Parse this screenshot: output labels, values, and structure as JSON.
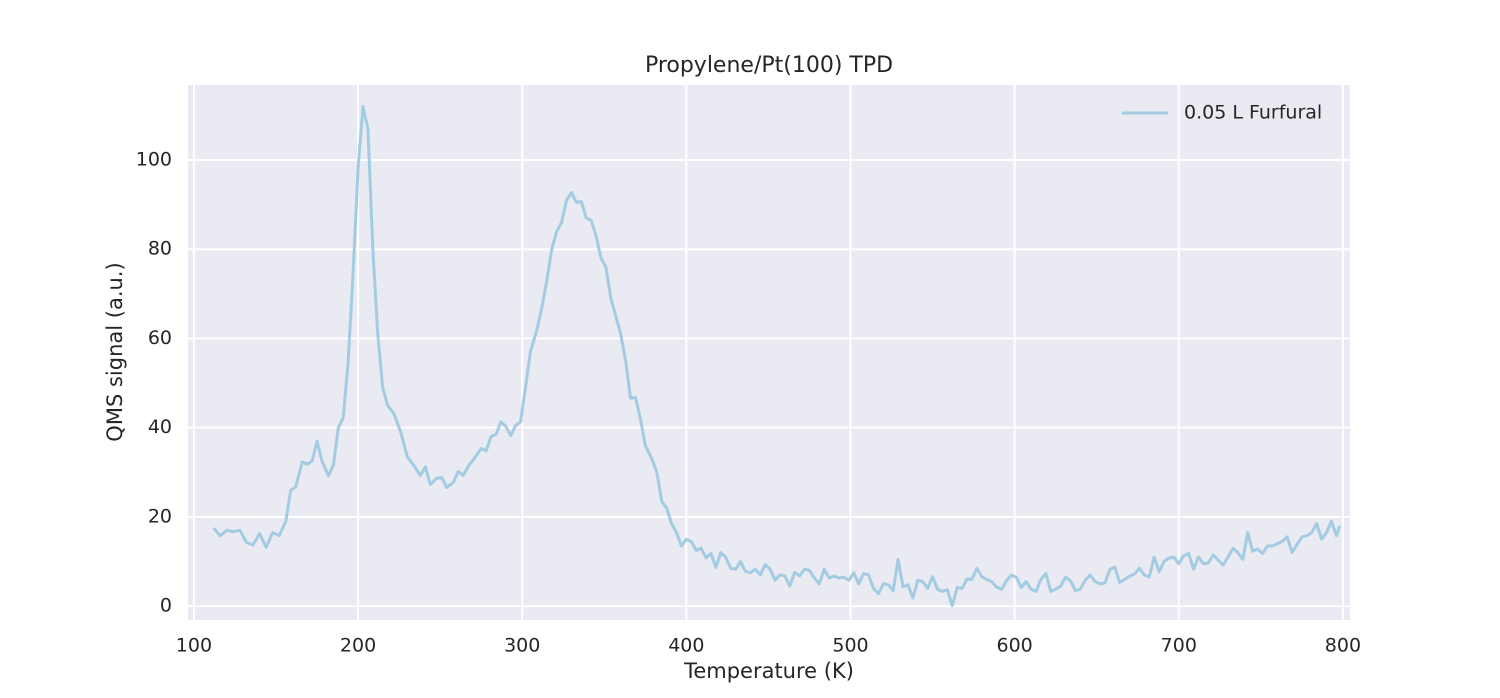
{
  "chart_data": {
    "type": "line",
    "title": "Propylene/Pt(100) TPD",
    "x_label": "Temperature (K)",
    "y_label": "QMS signal (a.u.)",
    "xlim": [
      96.4,
      804.3
    ],
    "ylim": [
      -3.1,
      116.8
    ],
    "xticks": [
      100,
      200,
      300,
      400,
      500,
      600,
      700,
      800
    ],
    "yticks": [
      0,
      20,
      40,
      60,
      80,
      100
    ],
    "grid": true,
    "legend": "upper right",
    "x": [
      112,
      116,
      120,
      124,
      128,
      132,
      136,
      140,
      144,
      148,
      152,
      156,
      159,
      162,
      166,
      169,
      172,
      175,
      178,
      182,
      185,
      188,
      191,
      194,
      197,
      200,
      203,
      206,
      209,
      212,
      215,
      218,
      222,
      226,
      230,
      234,
      238,
      241,
      244,
      248,
      251,
      254,
      258,
      261,
      264,
      268,
      271,
      275,
      278,
      281,
      284,
      287,
      290,
      293,
      296,
      299,
      302,
      305,
      309,
      312,
      315,
      318,
      321,
      324,
      327,
      330,
      333,
      336,
      339,
      342,
      345,
      348,
      351,
      354,
      357,
      360,
      363,
      366,
      369,
      372,
      375,
      379,
      382,
      385,
      388,
      391,
      394,
      397,
      400,
      403,
      406,
      409,
      412,
      415,
      418,
      421,
      424,
      427,
      430,
      433,
      436,
      439,
      442,
      445,
      448,
      451,
      454,
      457,
      460,
      463,
      466,
      469,
      472,
      475,
      478,
      481,
      484,
      487,
      490,
      493,
      496,
      499,
      502,
      505,
      508,
      511,
      514,
      517,
      520,
      523,
      526,
      529,
      532,
      535,
      538,
      541,
      544,
      547,
      550,
      553,
      556,
      559,
      562,
      565,
      568,
      571,
      574,
      577,
      580,
      583,
      586,
      589,
      592,
      595,
      598,
      601,
      604,
      607,
      610,
      613,
      616,
      619,
      622,
      625,
      628,
      631,
      634,
      637,
      640,
      643,
      646,
      649,
      652,
      655,
      658,
      661,
      664,
      667,
      670,
      673,
      676,
      679,
      682,
      685,
      688,
      691,
      694,
      697,
      700,
      703,
      706,
      709,
      712,
      715,
      718,
      721,
      724,
      727,
      730,
      733,
      736,
      739,
      742,
      745,
      748,
      751,
      754,
      757,
      760,
      763,
      766,
      769,
      772,
      775,
      778,
      781,
      784,
      787,
      790,
      793,
      796,
      798
    ],
    "series": [
      {
        "name": "0.05 L Furfural",
        "color": "#a3cce2",
        "values": [
          17.5,
          15.8,
          17,
          16.7,
          17,
          14.3,
          13.7,
          16.3,
          13.2,
          16.5,
          15.8,
          19,
          26,
          26.7,
          32.3,
          31.8,
          32.5,
          37,
          32.5,
          29.2,
          31.7,
          40,
          42.3,
          55,
          75,
          98,
          112,
          107,
          80,
          61,
          49,
          45,
          43,
          39,
          33.5,
          31.5,
          29.3,
          31.2,
          27.3,
          28.7,
          28.8,
          26.6,
          27.7,
          30.2,
          29.3,
          31.8,
          33.2,
          35.3,
          34.8,
          38,
          38.5,
          41.3,
          40.3,
          38.2,
          40.5,
          41.3,
          49,
          57,
          62,
          67,
          73,
          80,
          84,
          86,
          91,
          92.7,
          90.5,
          90.7,
          87,
          86.5,
          83,
          78,
          76,
          69,
          65,
          61,
          55,
          46.6,
          46.8,
          42,
          36,
          33,
          30,
          23.5,
          22,
          18.5,
          16.5,
          13.5,
          15,
          14.5,
          12.5,
          13,
          10.8,
          11.8,
          8.7,
          12,
          11,
          8.5,
          8.3,
          10,
          7.8,
          7.5,
          8.3,
          7,
          9.3,
          8.3,
          5.8,
          7,
          6.8,
          4.5,
          7.6,
          6.8,
          8.3,
          8,
          6.3,
          5,
          8.3,
          6.3,
          6.8,
          6.3,
          6.5,
          5.8,
          7.5,
          5,
          7.3,
          7,
          4,
          2.8,
          5,
          4.8,
          3.5,
          10.5,
          4.3,
          4.8,
          1.8,
          5.8,
          5.5,
          4,
          6.6,
          3.8,
          3.3,
          3.7,
          0.1,
          4.2,
          4,
          6.1,
          6,
          8.5,
          6.6,
          6,
          5.5,
          4.3,
          3.8,
          5.7,
          7,
          6.5,
          4.2,
          5.5,
          3.8,
          3.3,
          6,
          7.3,
          3.3,
          3.8,
          4.5,
          6.5,
          5.7,
          3.5,
          3.8,
          5.8,
          7,
          5.5,
          5,
          5.2,
          8.2,
          8.8,
          5.3,
          6,
          6.7,
          7.2,
          8.5,
          7,
          6.5,
          11,
          7.7,
          10,
          10.8,
          11,
          9.5,
          11.3,
          11.8,
          8.3,
          11,
          9.5,
          9.7,
          11.5,
          10.3,
          9.2,
          11,
          13,
          12,
          10.5,
          16.5,
          12.3,
          12.8,
          11.8,
          13.5,
          13.5,
          14,
          14.5,
          15.5,
          12,
          13.8,
          15.5,
          15.8,
          16.5,
          18.5,
          15,
          16.5,
          19,
          15.8,
          18
        ]
      }
    ]
  }
}
